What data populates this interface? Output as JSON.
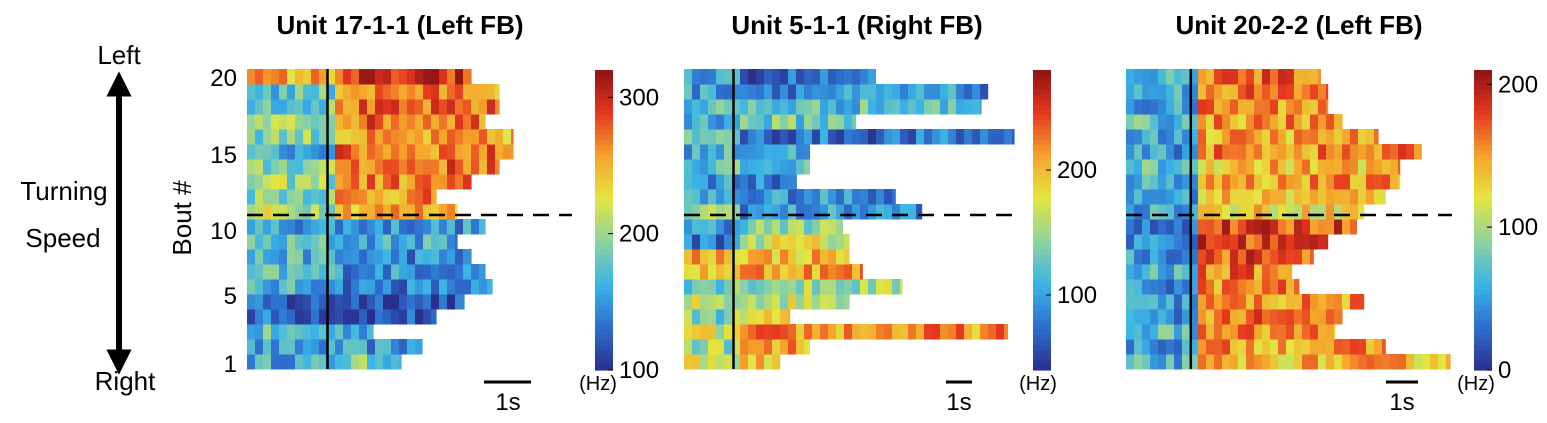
{
  "axis_labels": {
    "arrow_top": "Left",
    "arrow_bottom": "Right",
    "arrow_label_line1": "Turning",
    "arrow_label_line2": "Speed",
    "ylabel": "Bout #",
    "yticks": [
      "20",
      "15",
      "10",
      "5",
      "1"
    ]
  },
  "colormap": [
    "#2a2f8e",
    "#2e6fcf",
    "#3ab4e6",
    "#8fd3a0",
    "#e3e640",
    "#f6a32c",
    "#e6361f",
    "#8e1414"
  ],
  "chart_data": [
    {
      "type": "heatmap",
      "title": "Unit 17-1-1 (Left FB)",
      "scale_label": "1s",
      "colorbar_unit": "(Hz)",
      "colorbar_ticks": [
        "300",
        "200",
        "100"
      ],
      "colorbar_tick_values": [
        300,
        200,
        100
      ],
      "clim": [
        100,
        320
      ],
      "rows_bottom_to_top": [
        "1",
        "2",
        "3",
        "4",
        "5",
        "6",
        "7",
        "8",
        "9",
        "10",
        "11",
        "12",
        "13",
        "14",
        "15",
        "16",
        "17",
        "18",
        "19",
        "20"
      ],
      "bout_lengths_s": [
        2.2,
        2.5,
        1.8,
        2.7,
        3.1,
        3.5,
        3.4,
        3.2,
        3.0,
        3.4,
        3.0,
        2.7,
        3.2,
        3.6,
        3.8,
        3.8,
        3.4,
        3.6,
        3.6,
        3.2
      ],
      "onset_s": 1.15,
      "pre_rates_hz": [
        160,
        150,
        170,
        130,
        120,
        160,
        170,
        165,
        170,
        155,
        210,
        195,
        200,
        190,
        160,
        195,
        200,
        185,
        175,
        250
      ],
      "post_rates_hz": [
        185,
        150,
        165,
        120,
        125,
        140,
        150,
        145,
        160,
        150,
        255,
        260,
        265,
        275,
        270,
        250,
        275,
        270,
        265,
        290
      ],
      "divider_between_bouts": [
        "10",
        "11"
      ]
    },
    {
      "type": "heatmap",
      "title": "Unit 5-1-1 (Right FB)",
      "scale_label": "1s",
      "colorbar_unit": "(Hz)",
      "colorbar_ticks": [
        "200",
        "100"
      ],
      "colorbar_tick_values": [
        200,
        100
      ],
      "clim": [
        40,
        280
      ],
      "rows_bottom_to_top": [
        "1",
        "2",
        "3",
        "4",
        "5",
        "6",
        "7",
        "8",
        "9",
        "10",
        "11",
        "12",
        "13",
        "14",
        "15",
        "16",
        "17",
        "18",
        "19",
        "20"
      ],
      "bout_lengths_s": [
        1.45,
        1.9,
        4.9,
        1.6,
        2.5,
        3.3,
        2.7,
        2.5,
        2.5,
        2.4,
        3.6,
        3.2,
        1.7,
        1.9,
        1.9,
        5.0,
        2.6,
        4.5,
        4.6,
        2.9
      ],
      "onset_s": 0.75,
      "pre_rates_hz": [
        170,
        150,
        170,
        140,
        160,
        140,
        200,
        210,
        80,
        100,
        150,
        100,
        100,
        120,
        110,
        120,
        110,
        120,
        100,
        90
      ],
      "post_rates_hz": [
        190,
        205,
        215,
        180,
        165,
        150,
        215,
        200,
        170,
        140,
        95,
        90,
        85,
        110,
        110,
        75,
        130,
        120,
        90,
        70
      ],
      "divider_between_bouts": [
        "10",
        "11"
      ]
    },
    {
      "type": "heatmap",
      "title": "Unit 20-2-2 (Left FB)",
      "scale_label": "1s",
      "colorbar_unit": "(Hz)",
      "colorbar_ticks": [
        "200",
        "100",
        "0"
      ],
      "colorbar_tick_values": [
        200,
        100,
        0
      ],
      "clim": [
        0,
        210
      ],
      "rows_bottom_to_top": [
        "1",
        "2",
        "3",
        "4",
        "5",
        "6",
        "7",
        "8",
        "9",
        "10",
        "11",
        "12",
        "13",
        "14",
        "15",
        "16",
        "17",
        "18",
        "19",
        "20"
      ],
      "bout_lengths_s": [
        4.5,
        3.6,
        2.9,
        3.0,
        3.3,
        2.4,
        2.3,
        2.6,
        2.8,
        3.2,
        3.3,
        3.6,
        3.8,
        3.8,
        4.1,
        3.5,
        3.0,
        2.8,
        2.8,
        2.7
      ],
      "onset_s": 0.9,
      "pre_rates_hz": [
        60,
        50,
        70,
        40,
        50,
        45,
        60,
        50,
        40,
        40,
        60,
        50,
        60,
        70,
        50,
        60,
        70,
        50,
        60,
        60
      ],
      "post_rates_hz": [
        140,
        150,
        155,
        160,
        150,
        155,
        160,
        175,
        180,
        175,
        130,
        135,
        150,
        140,
        155,
        145,
        150,
        155,
        160,
        165
      ],
      "divider_between_bouts": [
        "10",
        "11"
      ]
    }
  ]
}
